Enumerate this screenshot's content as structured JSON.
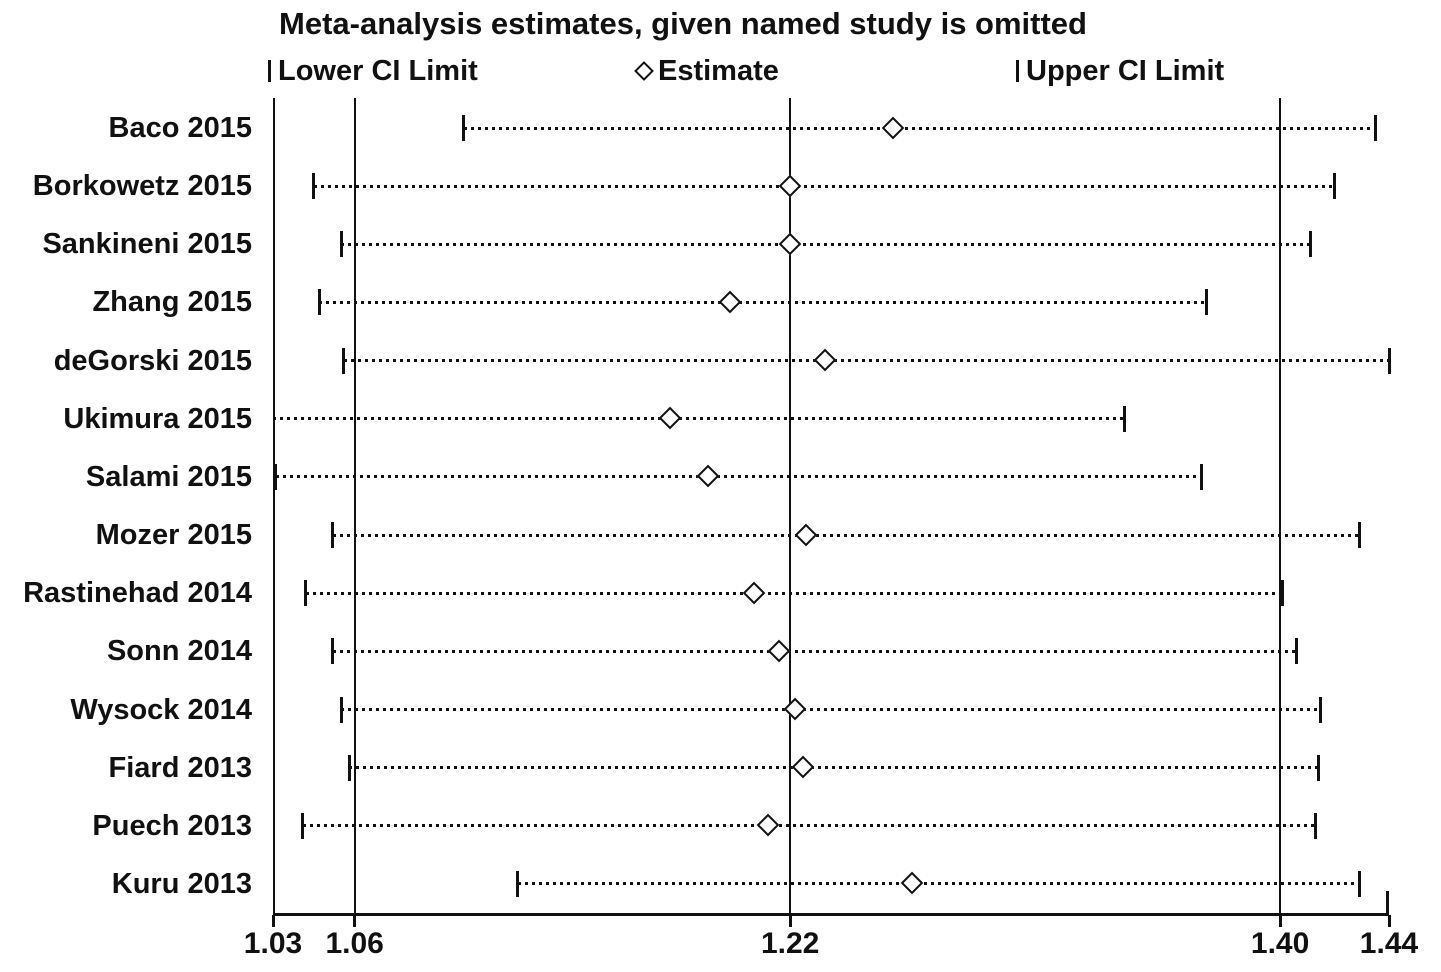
{
  "title": "Meta-analysis estimates, given named study is omitted",
  "legend": [
    {
      "marker": "tick",
      "label": "Lower CI Limit"
    },
    {
      "marker": "diamond",
      "label": "Estimate"
    },
    {
      "marker": "tick",
      "label": "Upper CI Limit"
    }
  ],
  "colors": {
    "foreground": "#111111",
    "background": "#ffffff"
  },
  "chart_data": {
    "type": "forest",
    "subtype": "leave-one-out sensitivity plot (study omitted meta-analysis estimates with confidence intervals)",
    "xlim": [
      1.03,
      1.44
    ],
    "xticks": [
      1.03,
      1.06,
      1.22,
      1.4,
      1.44
    ],
    "xtick_labels": [
      "1.03",
      "1.06",
      "1.22",
      "1.40",
      "1.44"
    ],
    "reference_lines": [
      1.03,
      1.06,
      1.22,
      1.4
    ],
    "grid": false,
    "legend_position": "top",
    "studies": [
      "Baco 2015",
      "Borkowetz 2015",
      "Sankineni 2015",
      "Zhang 2015",
      "deGorski 2015",
      "Ukimura 2015",
      "Salami 2015",
      "Mozer 2015",
      "Rastinehad 2014",
      "Sonn 2014",
      "Wysock 2014",
      "Fiard 2013",
      "Puech 2013",
      "Kuru 2013"
    ],
    "series": [
      {
        "study": "Baco 2015",
        "lower": 1.1,
        "estimate": 1.258,
        "upper": 1.435,
        "lower_tick_visible": true
      },
      {
        "study": "Borkowetz 2015",
        "lower": 1.045,
        "estimate": 1.22,
        "upper": 1.42,
        "lower_tick_visible": true
      },
      {
        "study": "Sankineni 2015",
        "lower": 1.055,
        "estimate": 1.22,
        "upper": 1.411,
        "lower_tick_visible": true
      },
      {
        "study": "Zhang 2015",
        "lower": 1.047,
        "estimate": 1.198,
        "upper": 1.373,
        "lower_tick_visible": true
      },
      {
        "study": "deGorski 2015",
        "lower": 1.056,
        "estimate": 1.233,
        "upper": 1.44,
        "lower_tick_visible": true
      },
      {
        "study": "Ukimura 2015",
        "lower": 1.03,
        "estimate": 1.176,
        "upper": 1.343,
        "lower_tick_visible": false
      },
      {
        "study": "Salami 2015",
        "lower": 1.031,
        "estimate": 1.19,
        "upper": 1.371,
        "lower_tick_visible": true
      },
      {
        "study": "Mozer 2015",
        "lower": 1.052,
        "estimate": 1.226,
        "upper": 1.429,
        "lower_tick_visible": true
      },
      {
        "study": "Rastinehad 2014",
        "lower": 1.042,
        "estimate": 1.207,
        "upper": 1.401,
        "lower_tick_visible": true
      },
      {
        "study": "Sonn 2014",
        "lower": 1.052,
        "estimate": 1.216,
        "upper": 1.406,
        "lower_tick_visible": true
      },
      {
        "study": "Wysock 2014",
        "lower": 1.055,
        "estimate": 1.222,
        "upper": 1.415,
        "lower_tick_visible": true
      },
      {
        "study": "Fiard 2013",
        "lower": 1.058,
        "estimate": 1.225,
        "upper": 1.414,
        "lower_tick_visible": true
      },
      {
        "study": "Puech 2013",
        "lower": 1.041,
        "estimate": 1.212,
        "upper": 1.413,
        "lower_tick_visible": true
      },
      {
        "study": "Kuru 2013",
        "lower": 1.12,
        "estimate": 1.265,
        "upper": 1.429,
        "lower_tick_visible": true
      }
    ]
  }
}
